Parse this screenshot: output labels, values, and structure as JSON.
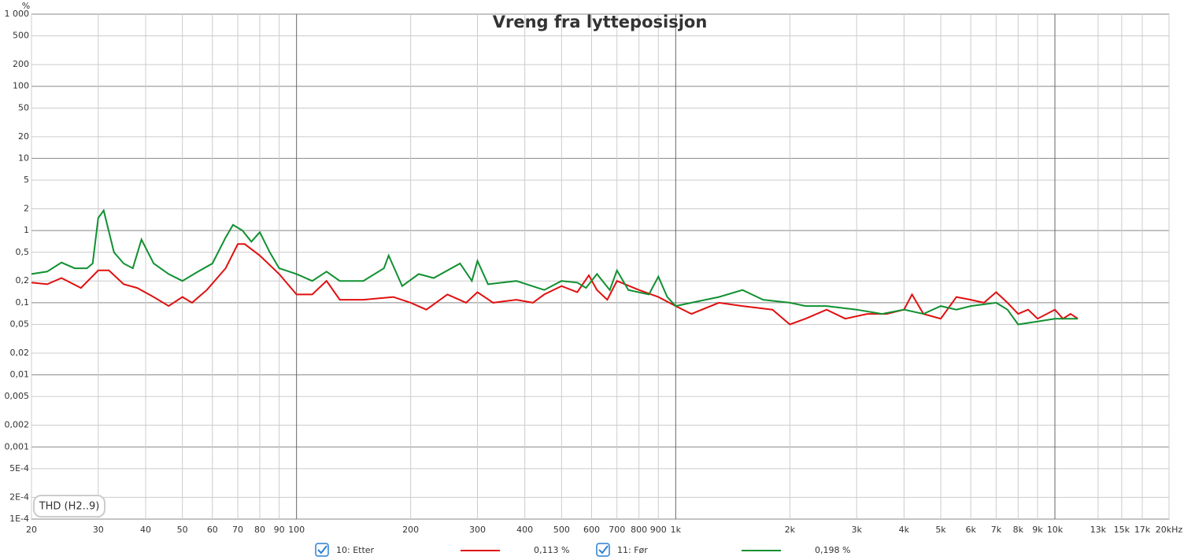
{
  "chart_data": {
    "type": "line",
    "title": "Vreng fra lytteposisjon",
    "y_unit": "%",
    "annotation": "THD (H2..9)",
    "log_x": true,
    "log_y": true,
    "grid": true,
    "xlim": [
      20,
      20000
    ],
    "ylim": [
      0.0001,
      1000
    ],
    "xticks": [
      20,
      30,
      40,
      50,
      60,
      70,
      80,
      90,
      100,
      200,
      300,
      400,
      500,
      600,
      700,
      800,
      900,
      {
        "value": 1000,
        "label": "1k"
      },
      {
        "value": 2000,
        "label": "2k"
      },
      {
        "value": 3000,
        "label": "3k"
      },
      {
        "value": 4000,
        "label": "4k"
      },
      {
        "value": 5000,
        "label": "5k"
      },
      {
        "value": 6000,
        "label": "6k"
      },
      {
        "value": 7000,
        "label": "7k"
      },
      {
        "value": 8000,
        "label": "8k"
      },
      {
        "value": 9000,
        "label": "9k"
      },
      {
        "value": 10000,
        "label": "10k"
      },
      {
        "value": 13000,
        "label": "13k"
      },
      {
        "value": 15000,
        "label": "15k"
      },
      {
        "value": 17000,
        "label": "17k"
      },
      {
        "value": 20000,
        "label": "20kHz"
      }
    ],
    "yticks": [
      {
        "value": 1000,
        "label": "1 000"
      },
      500,
      200,
      100,
      50,
      20,
      10,
      5,
      2,
      1,
      {
        "value": 0.5,
        "label": "0,5"
      },
      {
        "value": 0.2,
        "label": "0,2"
      },
      {
        "value": 0.1,
        "label": "0,1"
      },
      {
        "value": 0.05,
        "label": "0,05"
      },
      {
        "value": 0.02,
        "label": "0,02"
      },
      {
        "value": 0.01,
        "label": "0,01"
      },
      {
        "value": 0.005,
        "label": "0,005"
      },
      {
        "value": 0.002,
        "label": "0,002"
      },
      {
        "value": 0.001,
        "label": "0,001"
      },
      {
        "value": 0.0005,
        "label": "5E-4"
      },
      {
        "value": 0.0002,
        "label": "2E-4"
      },
      {
        "value": 0.0001,
        "label": "1E-4"
      }
    ],
    "series": [
      {
        "name": "10: Etter",
        "color": "#e01010",
        "legend_value": "0,113 %",
        "x": [
          20,
          22,
          24,
          27,
          30,
          32,
          35,
          38,
          42,
          46,
          50,
          53,
          58,
          65,
          70,
          73,
          80,
          90,
          100,
          110,
          120,
          130,
          150,
          180,
          200,
          220,
          250,
          280,
          300,
          330,
          380,
          420,
          450,
          500,
          550,
          590,
          620,
          660,
          700,
          800,
          900,
          1000,
          1100,
          1300,
          1500,
          1800,
          2000,
          2200,
          2500,
          2800,
          3200,
          3600,
          4000,
          4200,
          4500,
          5000,
          5500,
          6000,
          6500,
          7000,
          7500,
          8000,
          8500,
          9000,
          10000,
          10500,
          11000,
          11500
        ],
        "values": [
          0.19,
          0.18,
          0.22,
          0.16,
          0.28,
          0.28,
          0.18,
          0.16,
          0.12,
          0.09,
          0.12,
          0.1,
          0.15,
          0.3,
          0.65,
          0.65,
          0.45,
          0.25,
          0.13,
          0.13,
          0.2,
          0.11,
          0.11,
          0.12,
          0.1,
          0.08,
          0.13,
          0.1,
          0.14,
          0.1,
          0.11,
          0.1,
          0.13,
          0.17,
          0.14,
          0.24,
          0.15,
          0.11,
          0.2,
          0.15,
          0.12,
          0.09,
          0.07,
          0.1,
          0.09,
          0.08,
          0.05,
          0.06,
          0.08,
          0.06,
          0.07,
          0.07,
          0.08,
          0.13,
          0.07,
          0.06,
          0.12,
          0.11,
          0.1,
          0.14,
          0.1,
          0.07,
          0.08,
          0.06,
          0.08,
          0.06,
          0.07,
          0.06
        ]
      },
      {
        "name": "11: Før",
        "color": "#109030",
        "legend_value": "0,198 %",
        "x": [
          20,
          22,
          24,
          26,
          28,
          29,
          30,
          31,
          33,
          35,
          37,
          39,
          42,
          46,
          50,
          55,
          60,
          65,
          68,
          72,
          76,
          80,
          85,
          90,
          100,
          110,
          120,
          130,
          150,
          170,
          175,
          190,
          210,
          230,
          270,
          290,
          300,
          320,
          380,
          450,
          500,
          550,
          580,
          620,
          670,
          700,
          750,
          850,
          900,
          950,
          1000,
          1100,
          1300,
          1500,
          1700,
          2000,
          2200,
          2500,
          3000,
          3500,
          4000,
          4500,
          5000,
          5500,
          6000,
          7000,
          7500,
          8000,
          9000,
          10000,
          11000,
          11500
        ],
        "values": [
          0.25,
          0.27,
          0.36,
          0.3,
          0.3,
          0.35,
          1.5,
          1.9,
          0.5,
          0.35,
          0.3,
          0.75,
          0.35,
          0.25,
          0.2,
          0.27,
          0.35,
          0.8,
          1.2,
          1.0,
          0.7,
          0.95,
          0.5,
          0.3,
          0.25,
          0.2,
          0.27,
          0.2,
          0.2,
          0.3,
          0.45,
          0.17,
          0.25,
          0.22,
          0.35,
          0.2,
          0.38,
          0.18,
          0.2,
          0.15,
          0.2,
          0.19,
          0.16,
          0.25,
          0.15,
          0.28,
          0.15,
          0.13,
          0.23,
          0.12,
          0.09,
          0.1,
          0.12,
          0.15,
          0.11,
          0.1,
          0.09,
          0.09,
          0.08,
          0.07,
          0.08,
          0.07,
          0.09,
          0.08,
          0.09,
          0.1,
          0.08,
          0.05,
          0.055,
          0.06,
          0.06,
          0.06
        ]
      }
    ]
  }
}
